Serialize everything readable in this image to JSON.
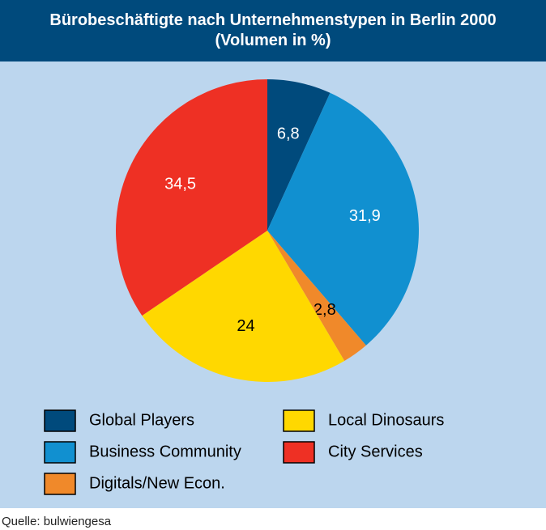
{
  "chart_data": {
    "type": "pie",
    "title": "Bürobeschäftigte nach Unternehmenstypen in Berlin 2000 (Volumen in %)",
    "categories": [
      "Global Players",
      "Business Community",
      "Digitals/New Econ.",
      "Local Dinosaurs",
      "City Services"
    ],
    "values": [
      6.8,
      31.9,
      2.8,
      24,
      34.5
    ],
    "value_labels": [
      "6,8",
      "31,9",
      "2,8",
      "24",
      "34,5"
    ],
    "colors": [
      "#004a7c",
      "#1190d0",
      "#f0892a",
      "#ffd800",
      "#ee3024"
    ],
    "source": "Quelle: bulwiengesa"
  }
}
